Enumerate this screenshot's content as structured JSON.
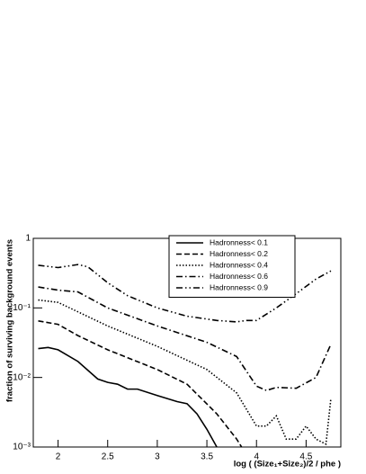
{
  "chart_data": {
    "type": "line",
    "xlabel": "log ( (Size₁+Size₂)/2 / phe )",
    "ylabel": "fraction of surviving background events",
    "log_y": true,
    "xlim": [
      1.75,
      4.85
    ],
    "ylim": [
      0.001,
      1
    ],
    "xticks": [
      2,
      2.5,
      3,
      3.5,
      4,
      4.5
    ],
    "yticks": [
      {
        "value": 0.001,
        "label": "10⁻³"
      },
      {
        "value": 0.01,
        "label": "10⁻²"
      },
      {
        "value": 0.1,
        "label": "10⁻¹"
      },
      1
    ],
    "legend": "top-right",
    "series": [
      {
        "name": "Hadronness< 0.1",
        "color": "#000000",
        "style": "solid",
        "x": [
          1.8,
          1.9,
          2.0,
          2.2,
          2.4,
          2.5,
          2.6,
          2.7,
          2.8,
          3.0,
          3.2,
          3.3,
          3.4,
          3.5,
          3.6
        ],
        "values": [
          0.026,
          0.027,
          0.025,
          0.017,
          0.0095,
          0.0085,
          0.008,
          0.0068,
          0.0068,
          0.0055,
          0.0045,
          0.0042,
          0.003,
          0.0018,
          0.001
        ]
      },
      {
        "name": "Hadronness< 0.2",
        "color": "#000000",
        "style": "dashed",
        "x": [
          1.8,
          2.0,
          2.2,
          2.5,
          3.0,
          3.3,
          3.6,
          3.8,
          3.85
        ],
        "values": [
          0.065,
          0.058,
          0.04,
          0.025,
          0.013,
          0.008,
          0.003,
          0.0013,
          0.001
        ]
      },
      {
        "name": "Hadronness< 0.4",
        "color": "#000000",
        "style": "dotted",
        "x": [
          1.8,
          2.0,
          2.5,
          3.0,
          3.5,
          3.8,
          4.0,
          4.1,
          4.2,
          4.3,
          4.4,
          4.5,
          4.6,
          4.7,
          4.75
        ],
        "values": [
          0.13,
          0.12,
          0.055,
          0.028,
          0.013,
          0.006,
          0.002,
          0.002,
          0.0028,
          0.0013,
          0.0013,
          0.002,
          0.0013,
          0.0011,
          0.005
        ]
      },
      {
        "name": "Hadronness< 0.6",
        "color": "#000000",
        "style": "dashdot",
        "x": [
          1.8,
          2.0,
          2.2,
          2.5,
          3.0,
          3.5,
          3.8,
          4.0,
          4.1,
          4.2,
          4.4,
          4.6,
          4.75
        ],
        "values": [
          0.2,
          0.18,
          0.17,
          0.1,
          0.055,
          0.032,
          0.02,
          0.0075,
          0.0065,
          0.0072,
          0.007,
          0.01,
          0.03
        ]
      },
      {
        "name": "Hadronness< 0.9",
        "color": "#000000",
        "style": "dashdotdot",
        "x": [
          1.8,
          2.0,
          2.2,
          2.3,
          2.5,
          2.7,
          3.0,
          3.3,
          3.6,
          3.8,
          3.9,
          4.0,
          4.2,
          4.4,
          4.6,
          4.75
        ],
        "values": [
          0.41,
          0.38,
          0.42,
          0.39,
          0.23,
          0.15,
          0.1,
          0.076,
          0.066,
          0.063,
          0.066,
          0.066,
          0.1,
          0.16,
          0.26,
          0.34
        ]
      }
    ]
  }
}
